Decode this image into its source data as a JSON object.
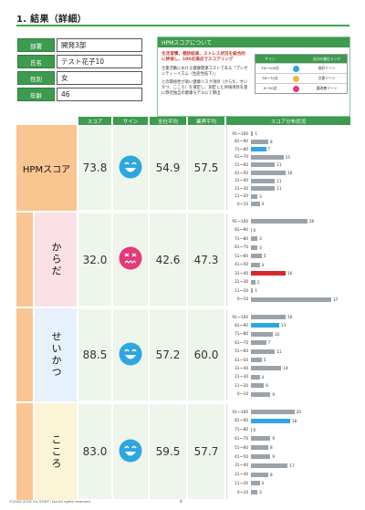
{
  "page_title": "1. 結果（詳細）",
  "profile": {
    "rows": [
      {
        "label": "部署",
        "value": "開発3部"
      },
      {
        "label": "氏名",
        "value": "テスト花子10"
      },
      {
        "label": "性別",
        "value": "女"
      },
      {
        "label": "年齢",
        "value": "46"
      }
    ]
  },
  "info": {
    "heading": "HPMスコアについて",
    "lead": "生活習慣、健診結果、ストレス状況を総合的に評価し、100点満点でスコアリング",
    "para1": "企業活動における健康関連コストである「プレゼンティーイズム（生産性低下）」",
    "para2": "との関係性が高い健康リスク項目（からだ、せいかつ、こころ）を選定し、測定した評価項目を基に弊社独自の健康モデルにて算出",
    "legend": {
      "headers": [
        "サイン",
        "",
        "自分の業位ランク"
      ],
      "rows": [
        {
          "range": "70〜100点",
          "color": "#2ea6e0",
          "label": "良好ゾーン"
        },
        {
          "range": "50〜70点",
          "color": "#f0b93a",
          "label": "注意ゾーン"
        },
        {
          "range": "0〜50点",
          "color": "#e4397a",
          "label": "要改善ゾーン"
        }
      ]
    }
  },
  "table": {
    "headers": {
      "score": "スコア",
      "sign": "サイン",
      "company_avg": "全社平均",
      "industry_avg": "業界平均",
      "distribution": "スコア分布状況"
    },
    "sections": [
      {
        "label": "HPMスコア",
        "score": "73.8",
        "sign": "good",
        "company_avg": "54.9",
        "industry_avg": "57.5",
        "bands": [
          "91〜100",
          "81〜90",
          "71〜80",
          "61〜70",
          "51〜60",
          "41〜50",
          "31〜40",
          "21〜30",
          "11〜20",
          "0〜10"
        ],
        "counts": [
          1,
          8,
          7,
          15,
          11,
          16,
          11,
          11,
          3,
          4
        ],
        "highlight": 2,
        "highlight_color": "#2ea6e0"
      },
      {
        "label": "からだ",
        "score": "32.0",
        "sign": "bad",
        "company_avg": "42.6",
        "industry_avg": "47.3",
        "bands": [
          "91〜100",
          "81〜90",
          "71〜80",
          "61〜70",
          "51〜60",
          "41〜50",
          "31〜40",
          "21〜30",
          "11〜20",
          "0〜10"
        ],
        "counts": [
          26,
          0,
          3,
          3,
          5,
          4,
          16,
          2,
          1,
          37
        ],
        "highlight": 6,
        "highlight_color": "#d9262c"
      },
      {
        "label": "せいかつ",
        "score": "88.5",
        "sign": "good",
        "company_avg": "57.2",
        "industry_avg": "60.0",
        "bands": [
          "91〜100",
          "81〜90",
          "71〜80",
          "61〜70",
          "51〜60",
          "41〜50",
          "31〜40",
          "21〜30",
          "11〜20",
          "0〜10"
        ],
        "counts": [
          16,
          13,
          10,
          7,
          11,
          5,
          14,
          4,
          6,
          9
        ],
        "highlight": 1,
        "highlight_color": "#2ea6e0"
      },
      {
        "label": "こころ",
        "score": "83.0",
        "sign": "good",
        "company_avg": "59.5",
        "industry_avg": "57.7",
        "bands": [
          "91〜100",
          "81〜90",
          "71〜80",
          "61〜70",
          "51〜60",
          "41〜50",
          "31〜40",
          "21〜30",
          "11〜20",
          "0〜10"
        ],
        "counts": [
          20,
          18,
          0,
          9,
          8,
          9,
          17,
          8,
          4,
          3
        ],
        "highlight": 1,
        "highlight_color": "#2ea6e0"
      }
    ]
  },
  "footer": "©2004-2018 iCa STAFF, Ltd.All rights reserved.",
  "page_number": "4"
}
